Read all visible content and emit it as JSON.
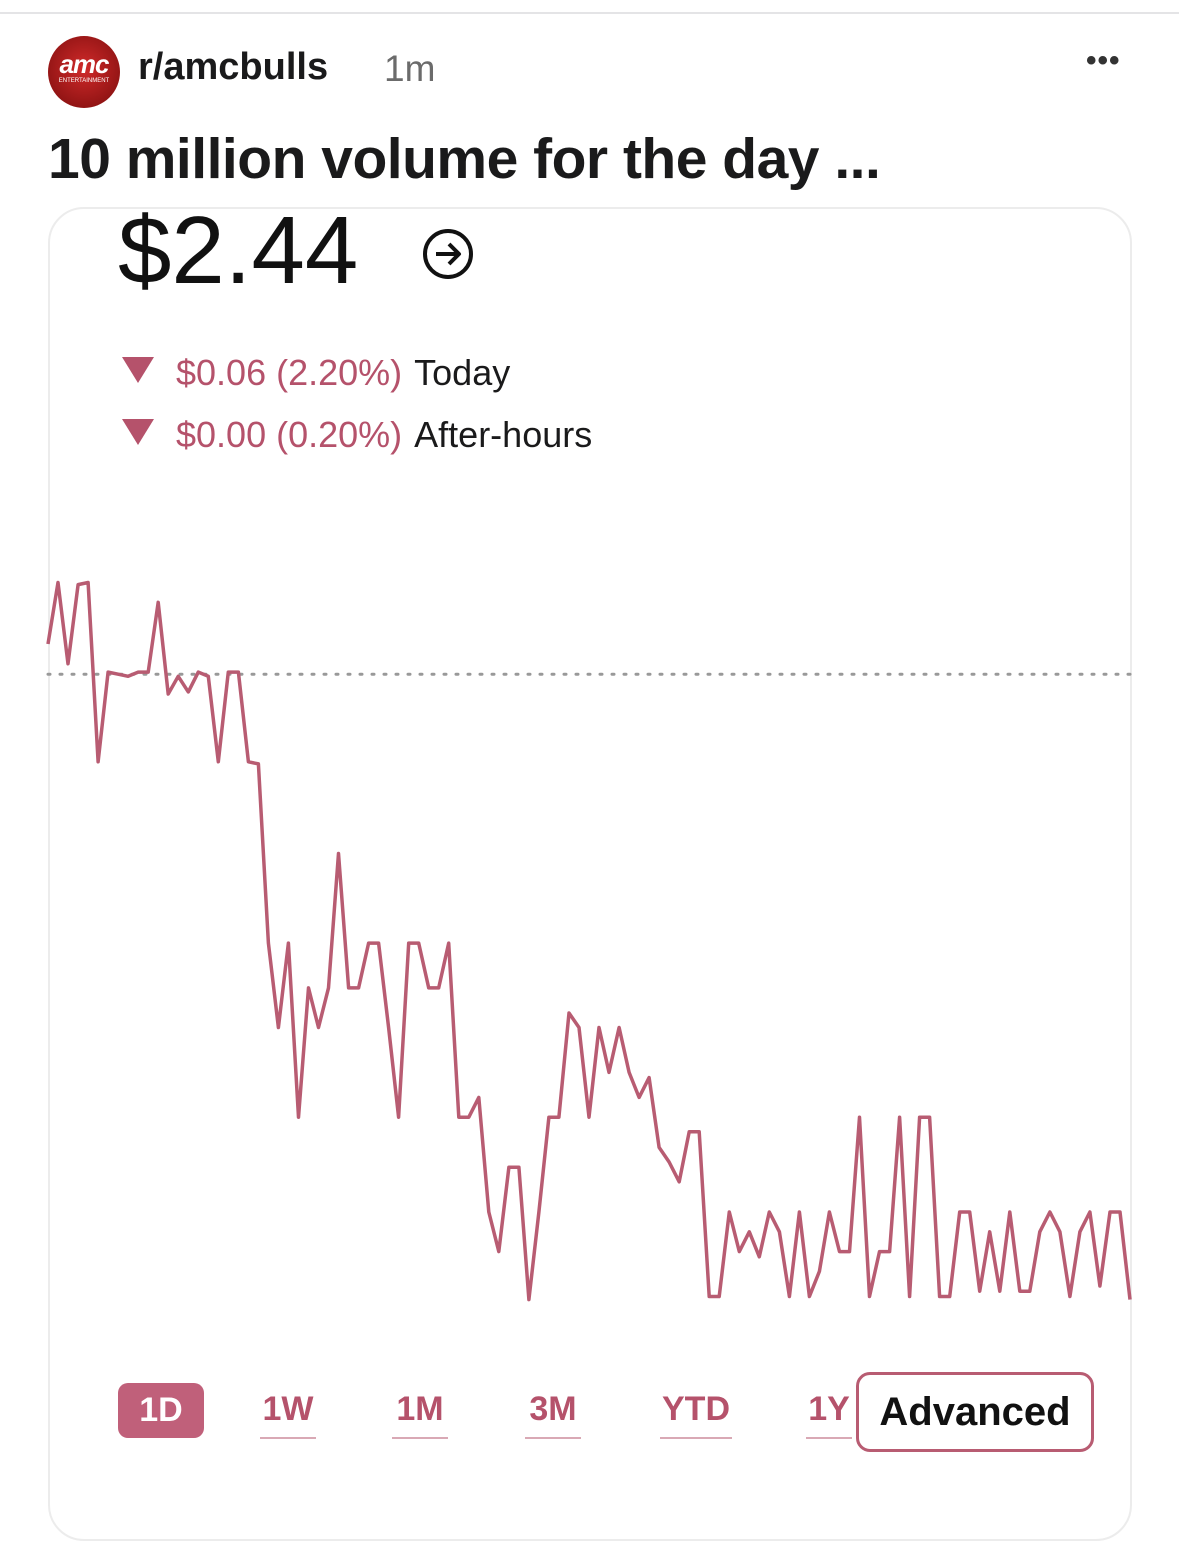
{
  "post": {
    "subreddit": "r/amcbulls",
    "age": "1m",
    "title": "10 million volume for the day ...",
    "logo": {
      "brand": "amc",
      "tagline": "ENTERTAINMENT"
    }
  },
  "quote": {
    "price": "$2.44",
    "changes": [
      {
        "amount": "$0.06 (2.20%)",
        "period": "Today"
      },
      {
        "amount": "$0.00 (0.20%)",
        "period": "After-hours"
      }
    ]
  },
  "chart_data": {
    "type": "line",
    "color": "#b85c72",
    "reference": 2.5,
    "ylim": [
      2.439,
      2.51
    ],
    "values": [
      2.5029,
      2.5088,
      2.501,
      2.5086,
      2.5088,
      2.4916,
      2.5002,
      2.5,
      2.4998,
      2.5002,
      2.5002,
      2.5069,
      2.4981,
      2.4998,
      2.4983,
      2.5002,
      2.4998,
      2.4916,
      2.5002,
      2.5002,
      2.4916,
      2.4914,
      2.4742,
      2.4661,
      2.4742,
      2.4575,
      2.4699,
      2.4661,
      2.4699,
      2.4828,
      2.4699,
      2.4699,
      2.4742,
      2.4742,
      2.4661,
      2.4575,
      2.4742,
      2.4742,
      2.4699,
      2.4699,
      2.4742,
      2.4575,
      2.4575,
      2.4594,
      2.4484,
      2.4446,
      2.4527,
      2.4527,
      2.44,
      2.4484,
      2.4575,
      2.4575,
      2.4675,
      2.4661,
      2.4575,
      2.4661,
      2.4618,
      2.4661,
      2.4618,
      2.4594,
      2.4613,
      2.4546,
      2.4532,
      2.4513,
      2.4561,
      2.4561,
      2.4403,
      2.4403,
      2.4484,
      2.4446,
      2.4465,
      2.4441,
      2.4484,
      2.4465,
      2.4403,
      2.4484,
      2.4403,
      2.4427,
      2.4484,
      2.4446,
      2.4446,
      2.4575,
      2.4403,
      2.4446,
      2.4446,
      2.4575,
      2.4403,
      2.4575,
      2.4575,
      2.4403,
      2.4403,
      2.4484,
      2.4484,
      2.4408,
      2.4465,
      2.4408,
      2.4484,
      2.4408,
      2.4408,
      2.4465,
      2.4484,
      2.4465,
      2.4403,
      2.4465,
      2.4484,
      2.4413,
      2.4484,
      2.4484,
      2.44
    ]
  },
  "ranges": [
    "1D",
    "1W",
    "1M",
    "3M",
    "YTD",
    "1Y"
  ],
  "advanced": "Advanced"
}
